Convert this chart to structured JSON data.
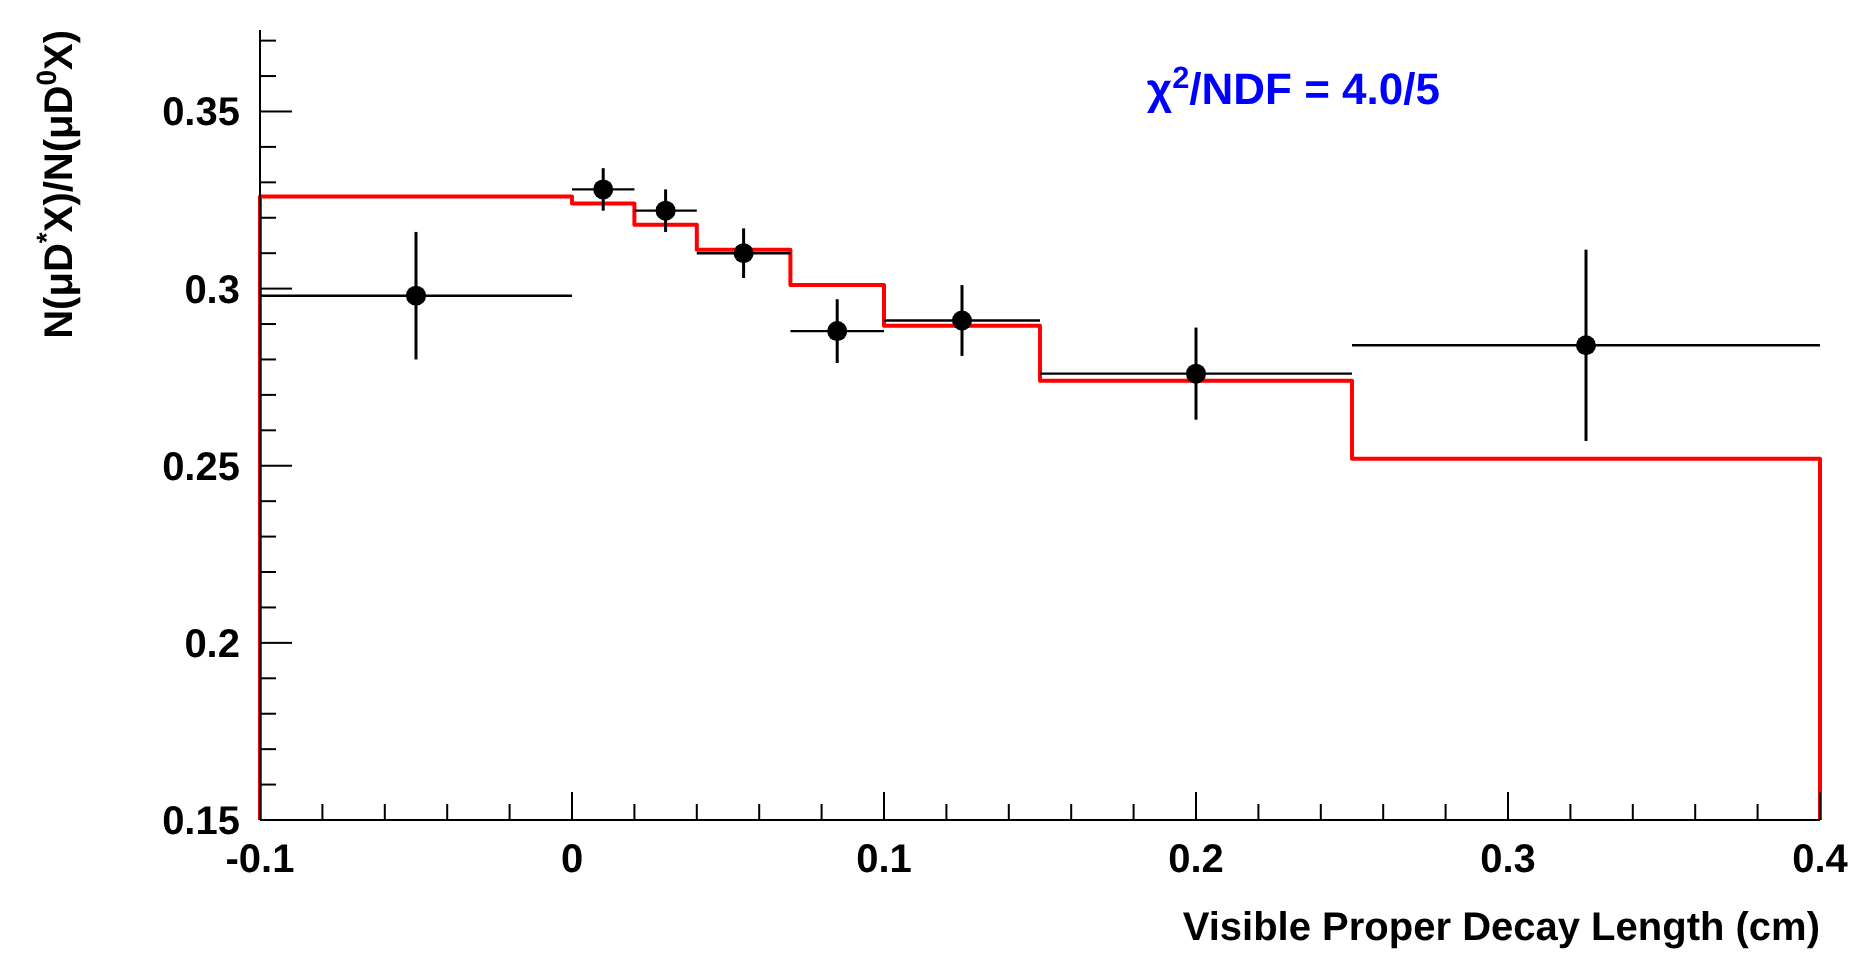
{
  "chart_data": {
    "type": "scatter",
    "xlabel": "Visible Proper Decay Length (cm)",
    "ylabel": "N(μD$^{*}$X)/N(μD$^{0}$X)",
    "annotations": [
      "χ$^{2}$/NDF = 4.0/5"
    ],
    "xlim": [
      -0.1,
      0.4
    ],
    "ylim": [
      0.15,
      0.373
    ],
    "xticks": [
      -0.1,
      {
        "value": -0.08,
        "label": null
      },
      {
        "value": -0.06,
        "label": null
      },
      {
        "value": -0.04,
        "label": null
      },
      {
        "value": -0.02,
        "label": null
      },
      0,
      {
        "value": 0.02,
        "label": null
      },
      {
        "value": 0.04,
        "label": null
      },
      {
        "value": 0.06,
        "label": null
      },
      {
        "value": 0.08,
        "label": null
      },
      0.1,
      {
        "value": 0.12,
        "label": null
      },
      {
        "value": 0.14,
        "label": null
      },
      {
        "value": 0.16,
        "label": null
      },
      {
        "value": 0.18,
        "label": null
      },
      0.2,
      {
        "value": 0.22,
        "label": null
      },
      {
        "value": 0.24,
        "label": null
      },
      {
        "value": 0.26,
        "label": null
      },
      {
        "value": 0.28,
        "label": null
      },
      0.3,
      {
        "value": 0.32,
        "label": null
      },
      {
        "value": 0.34,
        "label": null
      },
      {
        "value": 0.36,
        "label": null
      },
      {
        "value": 0.38,
        "label": null
      },
      0.4
    ],
    "yticks": [
      0.15,
      {
        "value": 0.16,
        "label": null
      },
      {
        "value": 0.17,
        "label": null
      },
      {
        "value": 0.18,
        "label": null
      },
      {
        "value": 0.19,
        "label": null
      },
      0.2,
      {
        "value": 0.21,
        "label": null
      },
      {
        "value": 0.22,
        "label": null
      },
      {
        "value": 0.23,
        "label": null
      },
      {
        "value": 0.24,
        "label": null
      },
      0.25,
      {
        "value": 0.26,
        "label": null
      },
      {
        "value": 0.27,
        "label": null
      },
      {
        "value": 0.28,
        "label": null
      },
      {
        "value": 0.29,
        "label": null
      },
      0.3,
      {
        "value": 0.31,
        "label": null
      },
      {
        "value": 0.32,
        "label": null
      },
      {
        "value": 0.33,
        "label": null
      },
      {
        "value": 0.34,
        "label": null
      },
      0.35,
      {
        "value": 0.36,
        "label": null
      },
      {
        "value": 0.37,
        "label": null
      }
    ],
    "marker": "circle",
    "series": [
      {
        "color": "#000000",
        "x": [
          -0.05,
          0.01,
          0.03,
          0.055,
          0.085,
          0.125,
          0.2,
          0.325
        ],
        "values": [
          0.298,
          0.328,
          0.322,
          0.31,
          0.288,
          0.291,
          0.276,
          0.284
        ],
        "errors": [
          0.018,
          0.006,
          0.006,
          0.007,
          0.009,
          0.01,
          0.013,
          0.027
        ],
        "xerrors": [
          0.05,
          0.01,
          0.01,
          0.015,
          0.015,
          0.025,
          0.05,
          0.075
        ]
      },
      {
        "type": "histogram",
        "color": "#ff0000",
        "bins": [
          -0.1,
          0,
          0.02,
          0.04,
          0.07,
          0.1,
          0.15,
          0.25,
          0.4
        ],
        "values": [
          0.326,
          0.324,
          0.318,
          0.311,
          0.301,
          0.2895,
          0.274,
          0.252
        ]
      }
    ]
  }
}
